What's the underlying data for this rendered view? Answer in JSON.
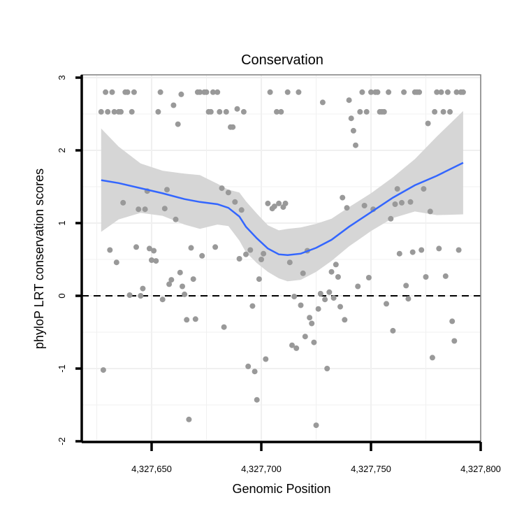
{
  "chart_data": {
    "type": "scatter",
    "title": "Conservation",
    "xlabel": "Genomic Position",
    "ylabel": "phyloP LRT conservation scores",
    "xlim": [
      4327620,
      4327800
    ],
    "ylim": [
      -2,
      3
    ],
    "x_ticks": [
      4327650,
      4327700,
      4327750,
      4327800
    ],
    "x_tick_labels": [
      "4,327,650",
      "4,327,700",
      "4,327,750",
      "4,327,800"
    ],
    "y_ticks": [
      -2,
      -1,
      0,
      1,
      2,
      3
    ],
    "y_tick_labels": [
      "-2",
      "-1",
      "0",
      "1",
      "2",
      "3"
    ],
    "reference_line": {
      "y": 0,
      "style": "dashed"
    },
    "colors": {
      "points": "#999999",
      "smooth": "#3366ff",
      "ribbon": "#d6d6d6",
      "grid": "#f0f0f0",
      "border": "#7f7f7f"
    },
    "points": [
      [
        4327627,
        2.53
      ],
      [
        4327628,
        -1.02
      ],
      [
        4327629,
        2.8
      ],
      [
        4327630,
        2.53
      ],
      [
        4327631,
        0.63
      ],
      [
        4327632,
        2.8
      ],
      [
        4327633,
        2.53
      ],
      [
        4327634,
        0.46
      ],
      [
        4327635,
        2.53
      ],
      [
        4327636,
        2.53
      ],
      [
        4327637,
        1.28
      ],
      [
        4327638,
        2.8
      ],
      [
        4327639,
        2.8
      ],
      [
        4327640,
        0.01
      ],
      [
        4327641,
        2.53
      ],
      [
        4327642,
        2.8
      ],
      [
        4327643,
        0.67
      ],
      [
        4327644,
        1.19
      ],
      [
        4327645,
        0.0
      ],
      [
        4327646,
        0.1
      ],
      [
        4327647,
        1.19
      ],
      [
        4327648,
        1.44
      ],
      [
        4327649,
        0.65
      ],
      [
        4327650,
        0.49
      ],
      [
        4327651,
        0.62
      ],
      [
        4327652,
        0.48
      ],
      [
        4327653,
        2.53
      ],
      [
        4327654,
        2.8
      ],
      [
        4327655,
        -0.05
      ],
      [
        4327656,
        1.2
      ],
      [
        4327657,
        1.46
      ],
      [
        4327658,
        0.16
      ],
      [
        4327659,
        0.22
      ],
      [
        4327660,
        2.62
      ],
      [
        4327661,
        1.05
      ],
      [
        4327662,
        2.36
      ],
      [
        4327663,
        0.32
      ],
      [
        4327663.5,
        2.77
      ],
      [
        4327664,
        0.13
      ],
      [
        4327665,
        0.02
      ],
      [
        4327666,
        -0.33
      ],
      [
        4327667,
        -1.7
      ],
      [
        4327668,
        0.66
      ],
      [
        4327669,
        0.23
      ],
      [
        4327670,
        -0.32
      ],
      [
        4327671,
        2.8
      ],
      [
        4327672,
        2.8
      ],
      [
        4327673,
        0.55
      ],
      [
        4327674,
        2.8
      ],
      [
        4327675,
        2.8
      ],
      [
        4327676,
        2.53
      ],
      [
        4327677,
        2.53
      ],
      [
        4327678,
        2.8
      ],
      [
        4327679,
        0.67
      ],
      [
        4327680,
        2.8
      ],
      [
        4327681,
        2.53
      ],
      [
        4327682,
        1.48
      ],
      [
        4327683,
        -0.43
      ],
      [
        4327684,
        2.53
      ],
      [
        4327685,
        1.42
      ],
      [
        4327686,
        2.32
      ],
      [
        4327687,
        2.32
      ],
      [
        4327688,
        1.29
      ],
      [
        4327689,
        2.57
      ],
      [
        4327690,
        0.51
      ],
      [
        4327691,
        1.18
      ],
      [
        4327692,
        2.53
      ],
      [
        4327693,
        0.57
      ],
      [
        4327694,
        -0.97
      ],
      [
        4327695,
        0.63
      ],
      [
        4327696,
        -0.14
      ],
      [
        4327697,
        -1.04
      ],
      [
        4327698,
        -1.43
      ],
      [
        4327699,
        0.23
      ],
      [
        4327700,
        0.5
      ],
      [
        4327701,
        0.58
      ],
      [
        4327702,
        -0.87
      ],
      [
        4327703,
        1.27
      ],
      [
        4327704,
        2.8
      ],
      [
        4327705,
        1.2
      ],
      [
        4327706,
        1.23
      ],
      [
        4327707,
        2.53
      ],
      [
        4327708,
        1.27
      ],
      [
        4327709,
        2.53
      ],
      [
        4327710,
        1.22
      ],
      [
        4327711,
        1.27
      ],
      [
        4327712,
        2.8
      ],
      [
        4327713,
        0.46
      ],
      [
        4327714,
        -0.68
      ],
      [
        4327715,
        -0.01
      ],
      [
        4327716,
        -0.72
      ],
      [
        4327717,
        2.8
      ],
      [
        4327718,
        -0.13
      ],
      [
        4327719,
        0.31
      ],
      [
        4327720,
        -0.56
      ],
      [
        4327721,
        0.62
      ],
      [
        4327722,
        -0.3
      ],
      [
        4327723,
        -0.38
      ],
      [
        4327724,
        -0.64
      ],
      [
        4327725,
        -1.78
      ],
      [
        4327726,
        -0.18
      ],
      [
        4327727,
        0.03
      ],
      [
        4327728,
        2.66
      ],
      [
        4327729,
        -0.05
      ],
      [
        4327730,
        -1.0
      ],
      [
        4327731,
        0.05
      ],
      [
        4327732,
        0.33
      ],
      [
        4327733,
        -0.03
      ],
      [
        4327734,
        0.43
      ],
      [
        4327735,
        0.26
      ],
      [
        4327736,
        -0.15
      ],
      [
        4327737,
        1.35
      ],
      [
        4327738,
        -0.33
      ],
      [
        4327739,
        1.21
      ],
      [
        4327740,
        2.69
      ],
      [
        4327741,
        2.44
      ],
      [
        4327742,
        2.27
      ],
      [
        4327743,
        2.07
      ],
      [
        4327744,
        0.13
      ],
      [
        4327745,
        2.53
      ],
      [
        4327746,
        2.8
      ],
      [
        4327747,
        1.24
      ],
      [
        4327748,
        2.53
      ],
      [
        4327749,
        0.25
      ],
      [
        4327750,
        2.8
      ],
      [
        4327751,
        1.19
      ],
      [
        4327752,
        2.8
      ],
      [
        4327753,
        2.8
      ],
      [
        4327754,
        2.53
      ],
      [
        4327755,
        2.53
      ],
      [
        4327756,
        2.53
      ],
      [
        4327757,
        -0.11
      ],
      [
        4327758,
        2.8
      ],
      [
        4327759,
        1.06
      ],
      [
        4327760,
        -0.48
      ],
      [
        4327761,
        1.26
      ],
      [
        4327762,
        1.47
      ],
      [
        4327763,
        0.58
      ],
      [
        4327764,
        1.28
      ],
      [
        4327765,
        2.8
      ],
      [
        4327766,
        0.14
      ],
      [
        4327767,
        -0.04
      ],
      [
        4327768,
        1.29
      ],
      [
        4327769,
        0.6
      ],
      [
        4327770,
        2.8
      ],
      [
        4327771,
        2.8
      ],
      [
        4327772,
        2.8
      ],
      [
        4327773,
        0.63
      ],
      [
        4327774,
        1.47
      ],
      [
        4327775,
        0.26
      ],
      [
        4327776,
        2.37
      ],
      [
        4327777,
        1.16
      ],
      [
        4327778,
        -0.85
      ],
      [
        4327779,
        2.53
      ],
      [
        4327780,
        2.8
      ],
      [
        4327781,
        0.65
      ],
      [
        4327782,
        2.8
      ],
      [
        4327783,
        2.53
      ],
      [
        4327784,
        0.27
      ],
      [
        4327785,
        2.8
      ],
      [
        4327786,
        2.53
      ],
      [
        4327787,
        -0.35
      ],
      [
        4327788,
        -0.62
      ],
      [
        4327789,
        2.8
      ],
      [
        4327790,
        0.63
      ],
      [
        4327791,
        2.8
      ],
      [
        4327792,
        2.8
      ]
    ],
    "smooth": {
      "method": "loess",
      "x": [
        4327627,
        4327635,
        4327645,
        4327655,
        4327665,
        4327672,
        4327680,
        4327685,
        4327690,
        4327693,
        4327698,
        4327703,
        4327708,
        4327712,
        4327718,
        4327725,
        4327732,
        4327740,
        4327750,
        4327760,
        4327770,
        4327780,
        4327792
      ],
      "y": [
        1.59,
        1.55,
        1.48,
        1.41,
        1.33,
        1.29,
        1.26,
        1.21,
        1.09,
        0.95,
        0.79,
        0.65,
        0.57,
        0.56,
        0.58,
        0.66,
        0.77,
        0.95,
        1.15,
        1.35,
        1.52,
        1.65,
        1.83
      ],
      "lower": [
        0.88,
        1.05,
        1.14,
        1.1,
        0.98,
        0.92,
        0.98,
        0.96,
        0.76,
        0.6,
        0.45,
        0.33,
        0.24,
        0.2,
        0.22,
        0.33,
        0.48,
        0.68,
        0.89,
        1.07,
        1.16,
        1.11,
        1.12
      ],
      "upper": [
        2.3,
        2.05,
        1.82,
        1.72,
        1.68,
        1.66,
        1.54,
        1.46,
        1.42,
        1.3,
        1.13,
        0.97,
        0.9,
        0.92,
        0.94,
        0.99,
        1.06,
        1.22,
        1.41,
        1.63,
        1.88,
        2.19,
        2.54
      ]
    }
  }
}
